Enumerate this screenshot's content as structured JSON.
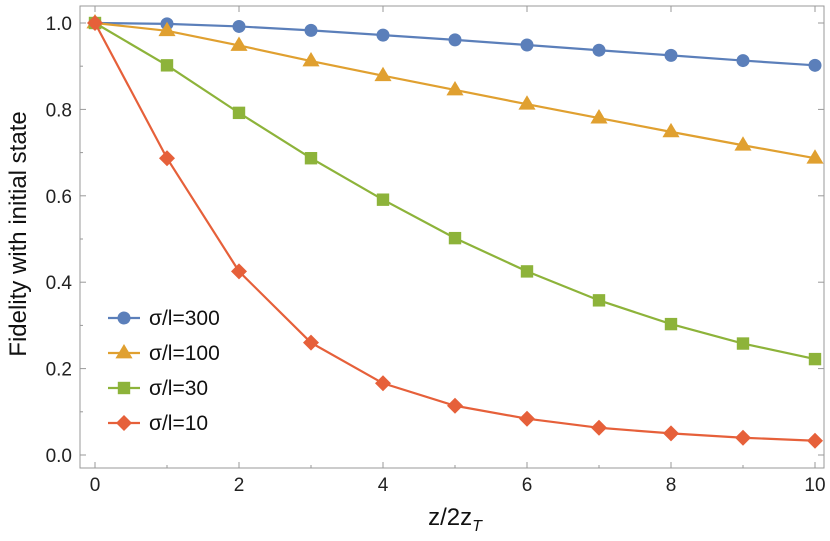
{
  "chart_data": {
    "type": "line",
    "xlabel": "z/2z",
    "xlabel_subscript": "T",
    "ylabel": "Fidelity with initial state",
    "xlim": [
      0,
      10
    ],
    "ylim": [
      0,
      1.0
    ],
    "xticks": [
      0,
      2,
      4,
      6,
      8,
      10
    ],
    "yticks": [
      0.0,
      0.2,
      0.4,
      0.6,
      0.8,
      1.0
    ],
    "xtick_labels": [
      "0",
      "2",
      "4",
      "6",
      "8",
      "10"
    ],
    "ytick_labels": [
      "0.0",
      "0.2",
      "0.4",
      "0.6",
      "0.8",
      "1.0"
    ],
    "legend_position": "bottom-left",
    "x": [
      0,
      1,
      2,
      3,
      4,
      5,
      6,
      7,
      8,
      9,
      10
    ],
    "series": [
      {
        "name": "σ/l=300",
        "color": "#5b7fba",
        "marker": "circle",
        "values": [
          1.0,
          0.998,
          0.992,
          0.983,
          0.972,
          0.961,
          0.949,
          0.937,
          0.925,
          0.913,
          0.902
        ]
      },
      {
        "name": "σ/l=100",
        "color": "#e0a030",
        "marker": "triangle",
        "values": [
          1.0,
          0.982,
          0.948,
          0.912,
          0.878,
          0.845,
          0.812,
          0.78,
          0.748,
          0.717,
          0.687
        ]
      },
      {
        "name": "σ/l=30",
        "color": "#8db33a",
        "marker": "square",
        "values": [
          1.0,
          0.902,
          0.792,
          0.687,
          0.591,
          0.502,
          0.425,
          0.358,
          0.303,
          0.258,
          0.222
        ]
      },
      {
        "name": "σ/l=10",
        "color": "#e6603a",
        "marker": "diamond",
        "values": [
          1.0,
          0.687,
          0.425,
          0.26,
          0.166,
          0.114,
          0.084,
          0.063,
          0.05,
          0.04,
          0.033
        ]
      }
    ]
  }
}
